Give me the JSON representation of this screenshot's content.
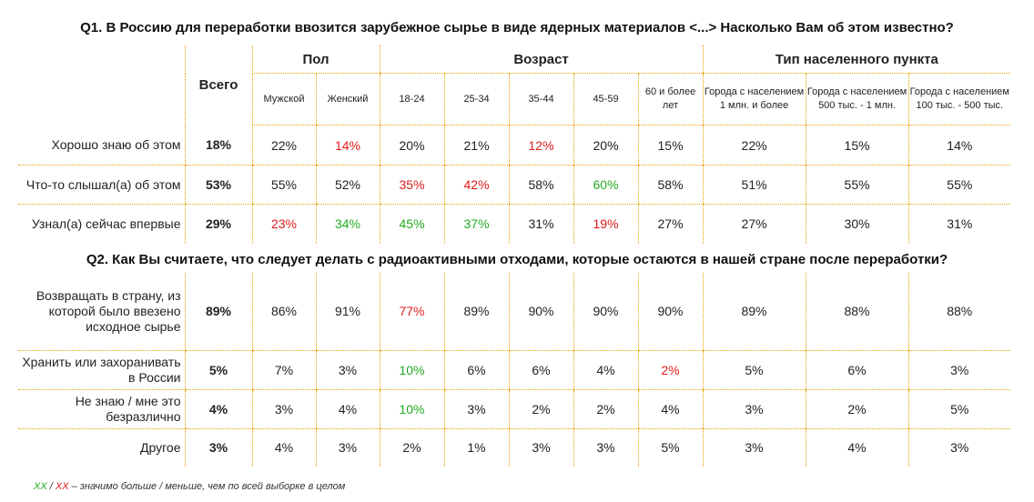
{
  "q1": {
    "title": "Q1. В Россию для переработки ввозится зарубежное сырье в виде ядерных материалов <...> Насколько Вам об этом известно?",
    "header": {
      "total": "Всего",
      "groups": {
        "sex": "Пол",
        "age": "Возраст",
        "settlement": "Тип населенного пункта"
      },
      "columns": [
        "Мужской",
        "Женский",
        "18-24",
        "25-34",
        "35-44",
        "45-59",
        "60 и более лет",
        "Города с населением 1 млн. и более",
        "Города с населением 500 тыс. - 1 млн.",
        "Города с населением 100 тыс. - 500 тыс."
      ]
    },
    "rows": [
      {
        "label": "Хорошо знаю об этом",
        "total": "18%",
        "values": [
          "22%",
          "14%",
          "20%",
          "21%",
          "12%",
          "20%",
          "15%",
          "22%",
          "15%",
          "14%"
        ],
        "colors": [
          "",
          "red",
          "",
          "",
          "red",
          "",
          "",
          "",
          "",
          ""
        ]
      },
      {
        "label": "Что-то слышал(а) об этом",
        "total": "53%",
        "values": [
          "55%",
          "52%",
          "35%",
          "42%",
          "58%",
          "60%",
          "58%",
          "51%",
          "55%",
          "55%"
        ],
        "colors": [
          "",
          "",
          "red",
          "red",
          "",
          "green",
          "",
          "",
          "",
          ""
        ]
      },
      {
        "label": "Узнал(а) сейчас впервые",
        "total": "29%",
        "values": [
          "23%",
          "34%",
          "45%",
          "37%",
          "31%",
          "19%",
          "27%",
          "27%",
          "30%",
          "31%"
        ],
        "colors": [
          "red",
          "green",
          "green",
          "green",
          "",
          "red",
          "",
          "",
          "",
          ""
        ]
      }
    ]
  },
  "q2": {
    "title": "Q2. Как Вы считаете, что следует делать с радиоактивными отходами, которые остаются в нашей стране после переработки?",
    "rows": [
      {
        "label": "Возвращать в страну, из которой было ввезено исходное сырье",
        "total": "89%",
        "values": [
          "86%",
          "91%",
          "77%",
          "89%",
          "90%",
          "90%",
          "90%",
          "89%",
          "88%",
          "88%"
        ],
        "colors": [
          "",
          "",
          "red",
          "",
          "",
          "",
          "",
          "",
          "",
          ""
        ]
      },
      {
        "label": "Хранить или захоранивать в России",
        "total": "5%",
        "values": [
          "7%",
          "3%",
          "10%",
          "6%",
          "6%",
          "4%",
          "2%",
          "5%",
          "6%",
          "3%"
        ],
        "colors": [
          "",
          "",
          "green",
          "",
          "",
          "",
          "red",
          "",
          "",
          ""
        ]
      },
      {
        "label": "Не знаю / мне это безразлично",
        "total": "4%",
        "values": [
          "3%",
          "4%",
          "10%",
          "3%",
          "2%",
          "2%",
          "4%",
          "3%",
          "2%",
          "5%"
        ],
        "colors": [
          "",
          "",
          "green",
          "",
          "",
          "",
          "",
          "",
          "",
          ""
        ]
      },
      {
        "label": "Другое",
        "total": "3%",
        "values": [
          "4%",
          "3%",
          "2%",
          "1%",
          "3%",
          "3%",
          "5%",
          "3%",
          "4%",
          "3%"
        ],
        "colors": [
          "",
          "",
          "",
          "",
          "",
          "",
          "",
          "",
          "",
          ""
        ]
      }
    ]
  },
  "legend": {
    "green_mark": "XX",
    "slash": " / ",
    "red_mark": "XX",
    "text": " – значимо больше / меньше, чем по всей выборке в целом"
  },
  "colors": {
    "green": "#22aa22",
    "red": "#e01b1b",
    "grid": "#e8a200"
  }
}
